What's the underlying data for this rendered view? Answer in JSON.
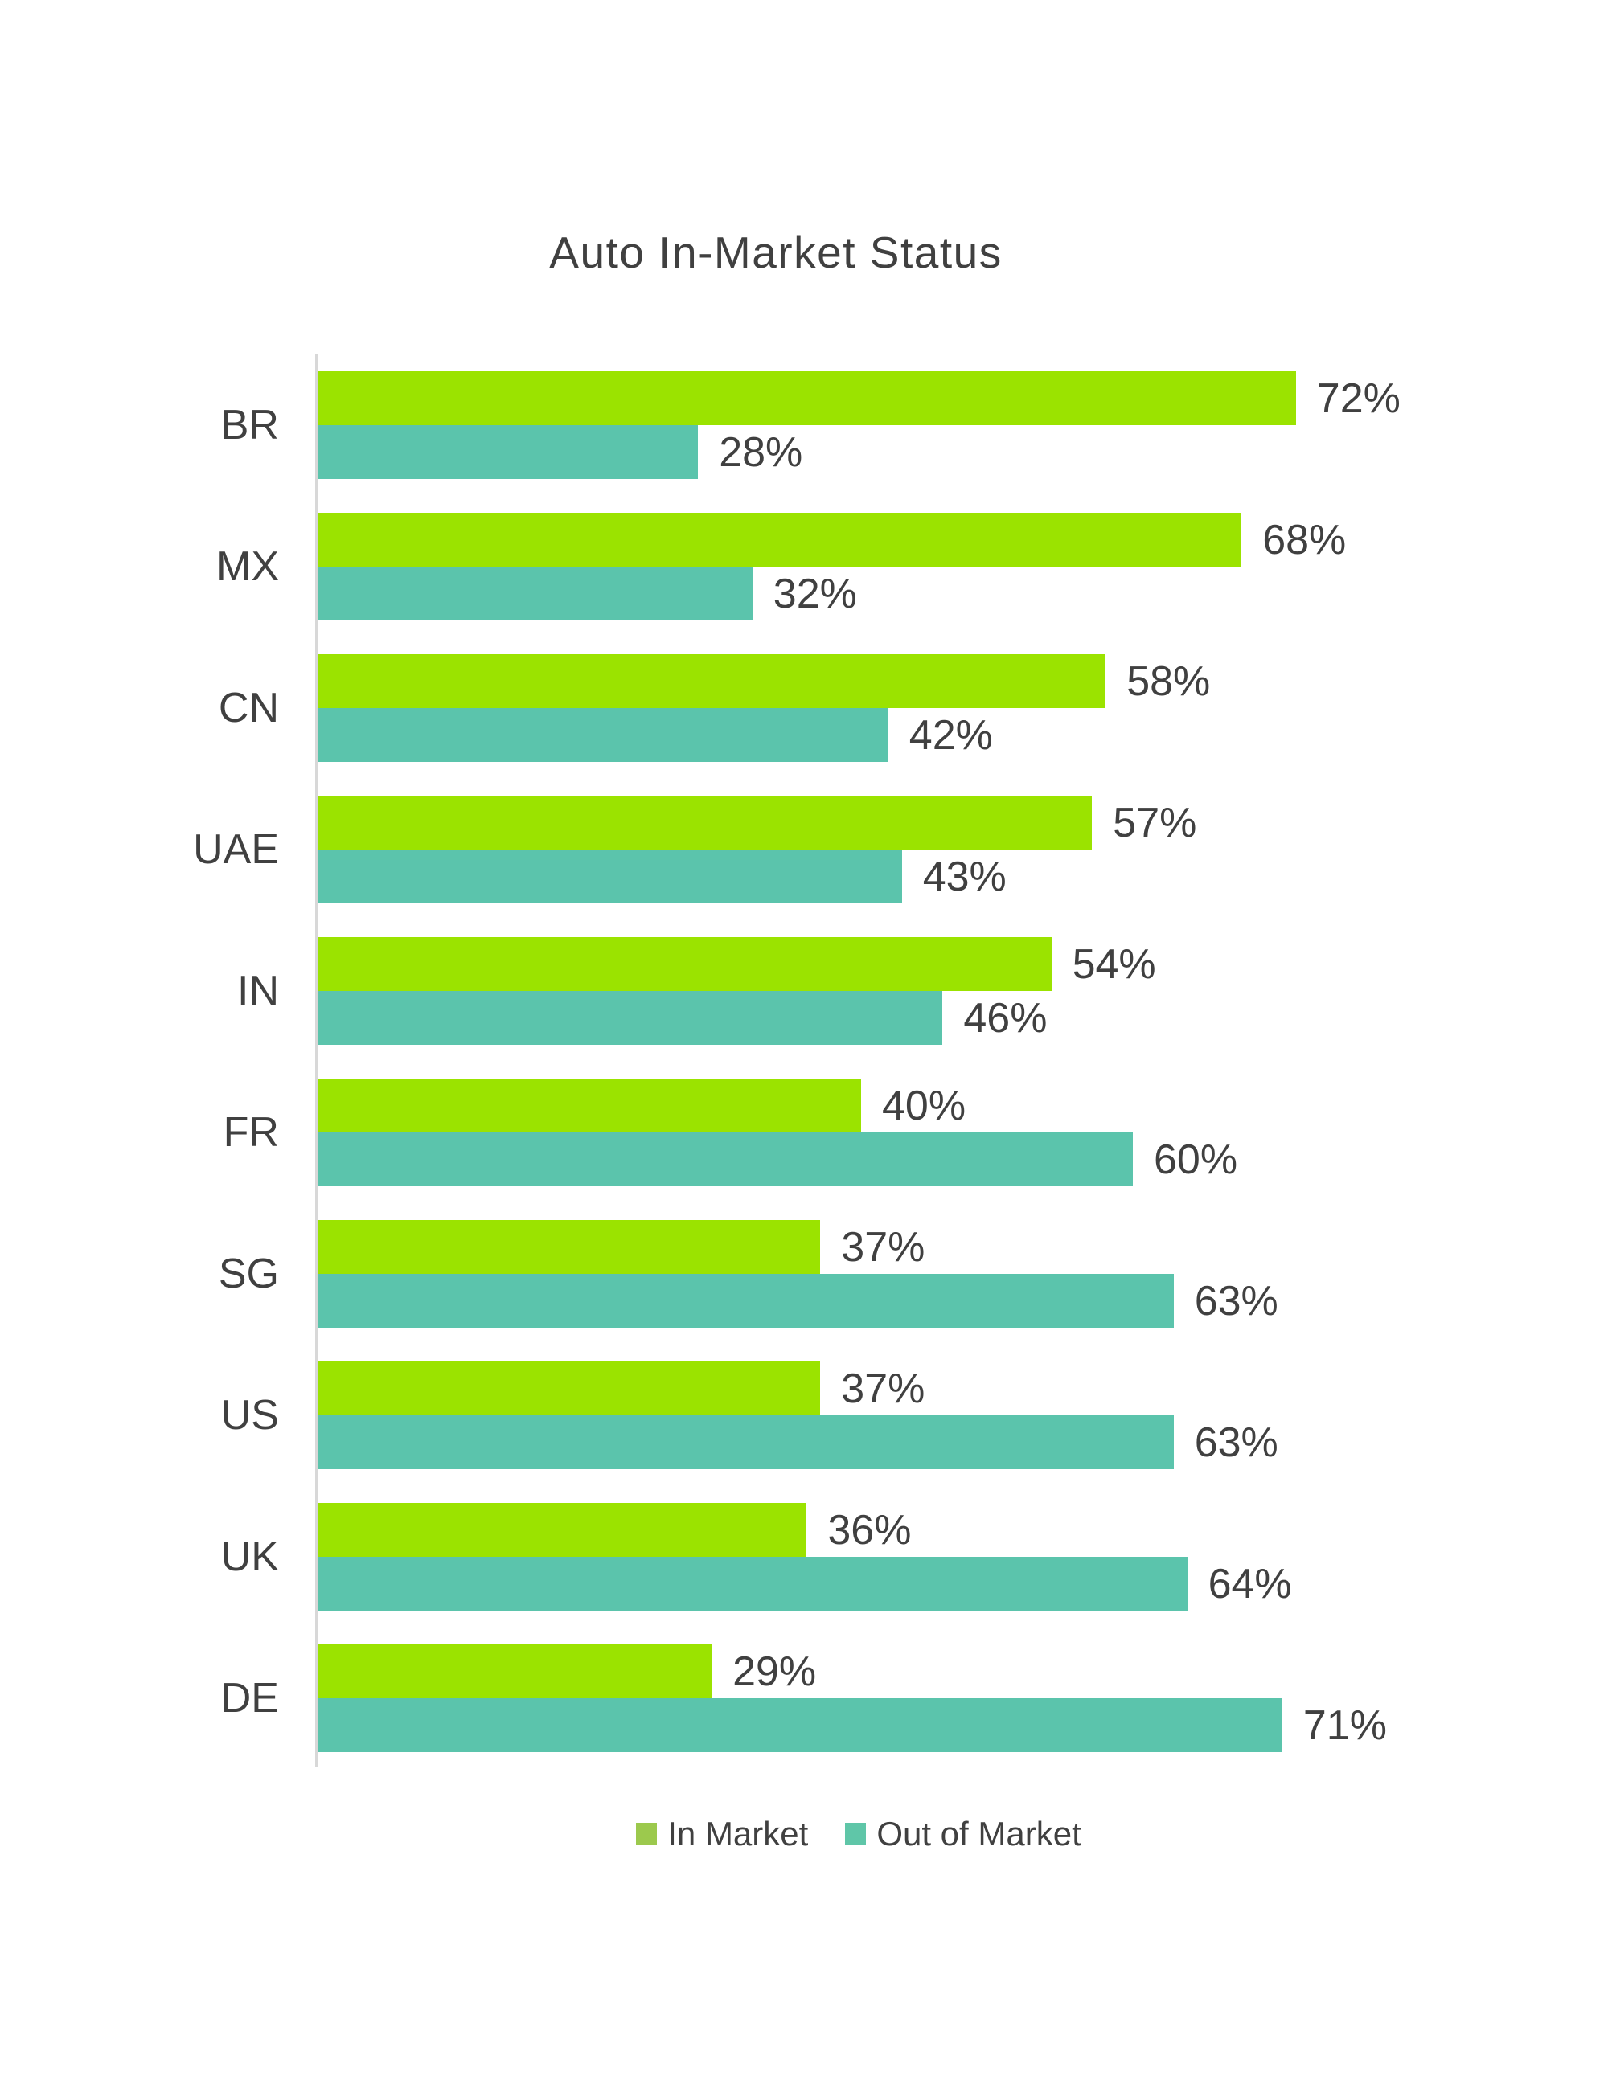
{
  "page": {
    "background": "#FFFFFF"
  },
  "chart_data": {
    "type": "bar",
    "orientation": "horizontal",
    "title": "Auto In-Market Status",
    "categories": [
      "BR",
      "MX",
      "CN",
      "UAE",
      "IN",
      "FR",
      "SG",
      "US",
      "UK",
      "DE"
    ],
    "series": [
      {
        "name": "In Market",
        "values": [
          72,
          68,
          58,
          57,
          54,
          40,
          37,
          37,
          36,
          29
        ],
        "labels": [
          "72%",
          "68%",
          "58%",
          "57%",
          "54%",
          "40%",
          "37%",
          "37%",
          "36%",
          "29%"
        ],
        "bar_color": "#9BE300",
        "legend_color": "#9CC94D"
      },
      {
        "name": "Out of Market",
        "values": [
          28,
          32,
          42,
          43,
          46,
          60,
          63,
          63,
          64,
          71
        ],
        "labels": [
          "28%",
          "32%",
          "42%",
          "43%",
          "46%",
          "60%",
          "63%",
          "63%",
          "64%",
          "71%"
        ],
        "bar_color": "#5BC4AC",
        "legend_color": "#5FC6A8"
      }
    ],
    "xlim": [
      0,
      80
    ],
    "grid": false,
    "axis_labels_visible": false,
    "legend_position": "bottom",
    "text_color": "#404040",
    "axis_line_color": "#D8D8D8"
  }
}
